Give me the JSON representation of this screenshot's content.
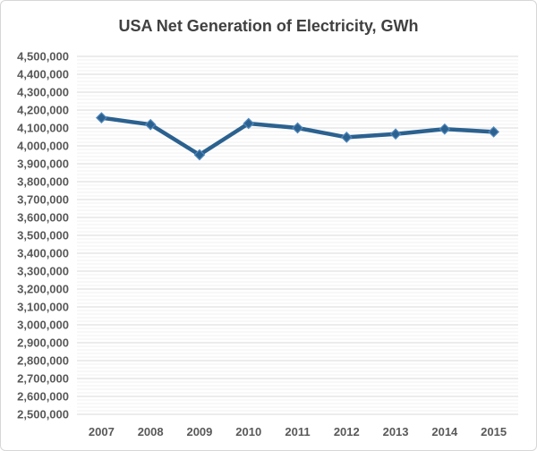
{
  "chart_data": {
    "type": "line",
    "title": "USA Net Generation of Electricity, GWh",
    "categories": [
      "2007",
      "2008",
      "2009",
      "2010",
      "2011",
      "2012",
      "2013",
      "2014",
      "2015"
    ],
    "values": [
      4157000,
      4119000,
      3950000,
      4125000,
      4100000,
      4048000,
      4066000,
      4094000,
      4078000
    ],
    "xlabel": "",
    "ylabel": "",
    "ylim": [
      2500000,
      4500000
    ],
    "y_major_unit": 100000,
    "y_minor_unit": 20000,
    "y_tick_labels": [
      "2,500,000",
      "2,600,000",
      "2,700,000",
      "2,800,000",
      "2,900,000",
      "3,000,000",
      "3,100,000",
      "3,200,000",
      "3,300,000",
      "3,400,000",
      "3,500,000",
      "3,600,000",
      "3,700,000",
      "3,800,000",
      "3,900,000",
      "4,000,000",
      "4,100,000",
      "4,200,000",
      "4,300,000",
      "4,400,000",
      "4,500,000"
    ],
    "grid": "horizontal major and minor gridlines",
    "legend": "none",
    "marker": "diamond"
  },
  "style": {
    "line_color": "#2B618F",
    "marker_fill": "#2B618F",
    "marker_stroke": "#4E86BC",
    "major_grid_color": "#D9D9D9",
    "minor_grid_color": "#F2F2F2",
    "tick_label_color": "#595959",
    "title_color": "#404040",
    "chart_border_color": "#D6D6D6",
    "background": "#FFFFFF"
  }
}
